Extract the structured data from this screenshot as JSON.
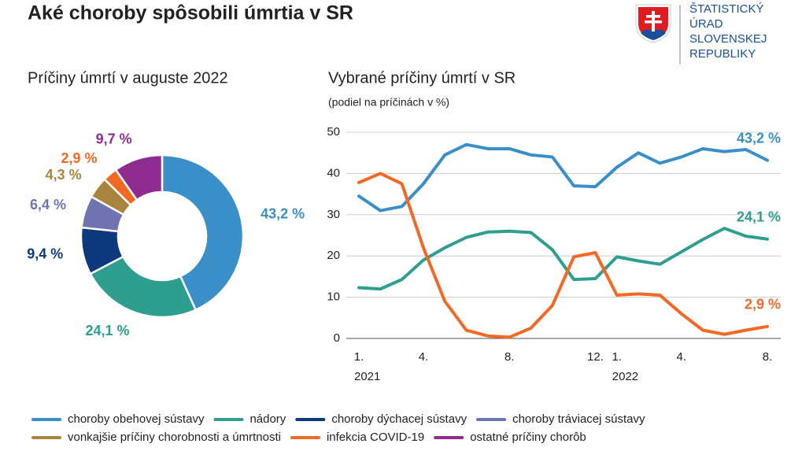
{
  "title": "Aké choroby spôsobili úmrtia v SR",
  "logo": [
    "ŠTATISTICKÝ",
    "ÚRAD",
    "SLOVENSKEJ",
    "REPUBLIKY"
  ],
  "chart_data": [
    {
      "type": "donut",
      "title": "Príčiny úmrtí v auguste 2022",
      "categories": [
        "choroby obehovej sústavy",
        "nádory",
        "choroby dýchacej sústavy",
        "choroby tráviacej sústavy",
        "vonkajšie príčiny chorobnosti a úmrtnosti",
        "infekcia COVID-19",
        "ostatné príčiny chorôb"
      ],
      "values": [
        43.2,
        24.1,
        9.4,
        6.4,
        4.3,
        2.9,
        9.7
      ],
      "value_labels": [
        "43,2 %",
        "24,1 %",
        "9,4 %",
        "6,4 %",
        "4,3 %",
        "2,9 %",
        "9,7 %"
      ],
      "colors": [
        "#3a8fc9",
        "#2e9e8e",
        "#0d3a7d",
        "#7173b0",
        "#a8843e",
        "#f06a26",
        "#8e2c8f"
      ]
    },
    {
      "type": "line",
      "title": "Vybrané príčiny úmrtí v SR",
      "subtitle": "(podiel na príčinách v %)",
      "categories": [
        "1.",
        null,
        null,
        "4.",
        null,
        null,
        null,
        "8.",
        null,
        null,
        null,
        "12.",
        "1.",
        null,
        null,
        "4.",
        null,
        null,
        null,
        "8."
      ],
      "years": [
        "2021",
        "2022"
      ],
      "ylim": [
        0,
        50
      ],
      "yticks": [
        0,
        10,
        20,
        30,
        40,
        50
      ],
      "grid": true,
      "series": [
        {
          "color": "#3a8fc9",
          "values": [
            34.5,
            31,
            32,
            37.5,
            44.5,
            47,
            46,
            46,
            44.5,
            44,
            37,
            36.8,
            41.5,
            45,
            42.5,
            44,
            46,
            45.3,
            45.8,
            43.2
          ],
          "value_labels": [
            null,
            null,
            null,
            null,
            null,
            null,
            null,
            null,
            null,
            null,
            null,
            null,
            null,
            null,
            null,
            null,
            null,
            null,
            null,
            "43,2 %"
          ]
        },
        {
          "color": "#2e9e8e",
          "values": [
            12.3,
            12,
            14.3,
            19,
            22,
            24.5,
            25.8,
            26,
            25.7,
            21.5,
            14.3,
            14.5,
            19.8,
            18.8,
            18,
            21,
            24,
            26.7,
            24.8,
            24.1
          ],
          "value_labels": [
            null,
            null,
            null,
            null,
            null,
            null,
            null,
            null,
            null,
            null,
            null,
            null,
            null,
            null,
            null,
            null,
            null,
            null,
            null,
            "24,1 %"
          ]
        },
        {
          "color": "#f06a26",
          "values": [
            37.8,
            40,
            37.5,
            22,
            9,
            2,
            0.6,
            0.3,
            2.5,
            8,
            19.8,
            20.8,
            10.5,
            10.8,
            10.5,
            6,
            2,
            1,
            2,
            2.9
          ],
          "value_labels": [
            null,
            null,
            null,
            null,
            null,
            null,
            null,
            null,
            null,
            null,
            null,
            null,
            null,
            null,
            null,
            null,
            null,
            null,
            null,
            "2,9 %"
          ]
        }
      ]
    }
  ]
}
